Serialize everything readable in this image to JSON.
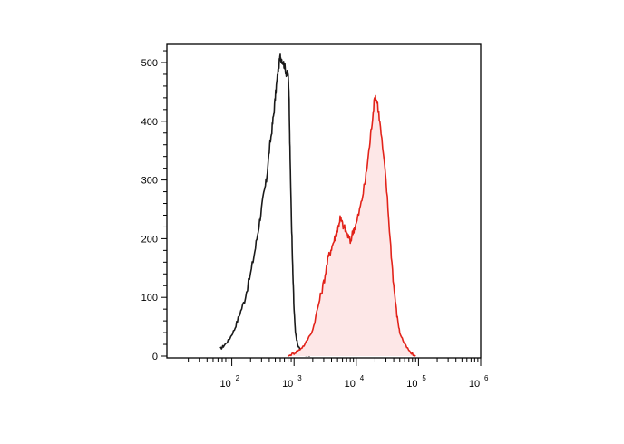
{
  "chart_data": {
    "type": "area",
    "x_scale": "log",
    "xlim": [
      10,
      1000000
    ],
    "ylim": [
      0,
      530
    ],
    "grid": false,
    "y_ticks": [
      0,
      100,
      200,
      300,
      400,
      500
    ],
    "x_major_ticks": [
      {
        "value": 100,
        "base": "10",
        "exp": "2"
      },
      {
        "value": 1000,
        "base": "10",
        "exp": "3"
      },
      {
        "value": 10000,
        "base": "10",
        "exp": "4"
      },
      {
        "value": 100000,
        "base": "10",
        "exp": "5"
      },
      {
        "value": 1000000,
        "base": "10",
        "exp": "6"
      }
    ],
    "series": [
      {
        "color": "#1a1a1a",
        "fill": "none",
        "points": [
          [
            65,
            12
          ],
          [
            75,
            18
          ],
          [
            90,
            28
          ],
          [
            110,
            45
          ],
          [
            130,
            68
          ],
          [
            160,
            95
          ],
          [
            200,
            140
          ],
          [
            240,
            185
          ],
          [
            280,
            230
          ],
          [
            320,
            270
          ],
          [
            360,
            300
          ],
          [
            400,
            350
          ],
          [
            440,
            385
          ],
          [
            480,
            420
          ],
          [
            520,
            460
          ],
          [
            560,
            490
          ],
          [
            600,
            510
          ],
          [
            640,
            505
          ],
          [
            700,
            495
          ],
          [
            760,
            480
          ],
          [
            800,
            480
          ],
          [
            830,
            450
          ],
          [
            860,
            350
          ],
          [
            900,
            250
          ],
          [
            950,
            150
          ],
          [
            1000,
            80
          ],
          [
            1050,
            40
          ],
          [
            1150,
            18
          ],
          [
            1300,
            8
          ],
          [
            1500,
            3
          ],
          [
            1800,
            0
          ]
        ]
      },
      {
        "color": "#e2231a",
        "fill": "#fde7e7",
        "points": [
          [
            800,
            0
          ],
          [
            1000,
            5
          ],
          [
            1200,
            10
          ],
          [
            1500,
            20
          ],
          [
            2000,
            45
          ],
          [
            2500,
            90
          ],
          [
            3000,
            125
          ],
          [
            3500,
            165
          ],
          [
            4000,
            185
          ],
          [
            4500,
            200
          ],
          [
            5000,
            215
          ],
          [
            5500,
            235
          ],
          [
            6000,
            225
          ],
          [
            7000,
            210
          ],
          [
            8000,
            195
          ],
          [
            9000,
            215
          ],
          [
            10000,
            225
          ],
          [
            12000,
            260
          ],
          [
            14000,
            300
          ],
          [
            16000,
            350
          ],
          [
            18000,
            400
          ],
          [
            20000,
            445
          ],
          [
            22000,
            430
          ],
          [
            25000,
            380
          ],
          [
            30000,
            300
          ],
          [
            35000,
            200
          ],
          [
            40000,
            120
          ],
          [
            45000,
            70
          ],
          [
            50000,
            40
          ],
          [
            60000,
            20
          ],
          [
            75000,
            5
          ],
          [
            90000,
            0
          ]
        ]
      }
    ]
  }
}
